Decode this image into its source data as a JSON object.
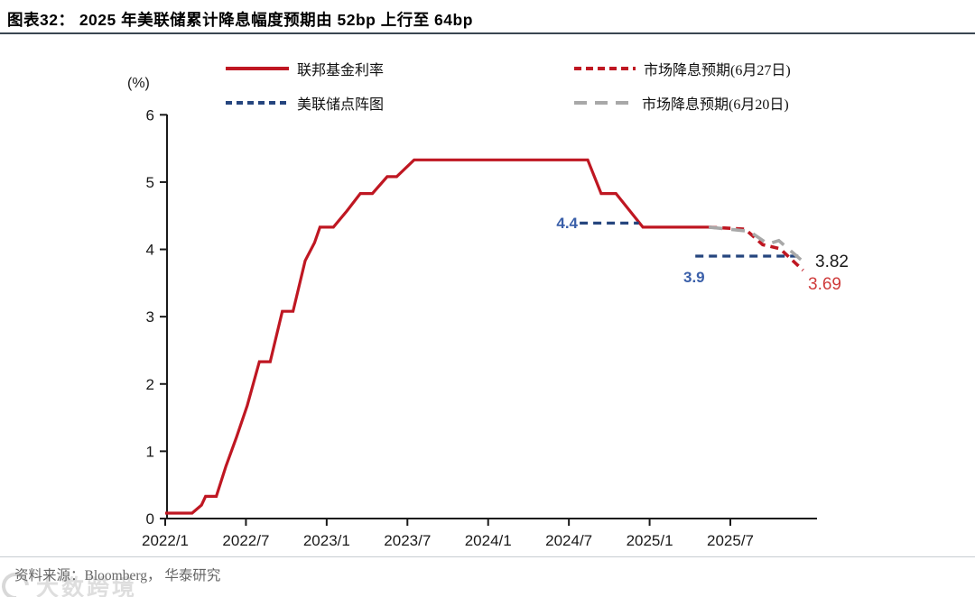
{
  "header": {
    "title": "图表32：  2025 年美联储累计降息幅度预期由 52bp 上行至 64bp"
  },
  "legend": {
    "items": [
      {
        "label": "联邦基金利率",
        "color": "#bf1722",
        "style": "solid"
      },
      {
        "label": "美联储点阵图",
        "color": "#25457e",
        "style": "short-dash"
      },
      {
        "label": "市场降息预期(6月27日)",
        "color": "#bf1722",
        "style": "short-dash"
      },
      {
        "label": "市场降息预期(6月20日)",
        "color": "#a8a8a8",
        "style": "long-dash"
      }
    ]
  },
  "chart_data": {
    "type": "line",
    "title": "2025 年美联储累计降息幅度预期由 52bp 上行至 64bp",
    "ylabel": "(%)",
    "ylim": [
      0,
      6
    ],
    "y_ticks": [
      0,
      1,
      2,
      3,
      4,
      5,
      6
    ],
    "grid": false,
    "legend_position": "top",
    "x_axis": {
      "unit": "months since 2022/1",
      "ticks": [
        {
          "m": 0,
          "label": "2022/1"
        },
        {
          "m": 6,
          "label": "2022/7"
        },
        {
          "m": 12,
          "label": "2023/1"
        },
        {
          "m": 18,
          "label": "2023/7"
        },
        {
          "m": 24,
          "label": "2024/1"
        },
        {
          "m": 30,
          "label": "2024/7"
        },
        {
          "m": 36,
          "label": "2025/1"
        },
        {
          "m": 42,
          "label": "2025/7"
        }
      ],
      "domain_months": [
        0,
        48.3
      ]
    },
    "series": [
      {
        "name": "联邦基金利率",
        "color": "#bf1722",
        "dash": "solid",
        "width": 3.2,
        "segments": [
          [
            [
              0,
              0.08
            ],
            [
              2,
              0.08
            ],
            [
              2.7,
              0.2
            ],
            [
              3,
              0.33
            ],
            [
              3.8,
              0.33
            ],
            [
              4.5,
              0.77
            ],
            [
              5.3,
              1.21
            ],
            [
              6.1,
              1.68
            ],
            [
              7,
              2.33
            ],
            [
              7.8,
              2.33
            ],
            [
              8.7,
              3.08
            ],
            [
              9.5,
              3.08
            ],
            [
              10.4,
              3.83
            ],
            [
              11.1,
              4.1
            ],
            [
              11.5,
              4.33
            ],
            [
              12.5,
              4.33
            ],
            [
              13.5,
              4.57
            ],
            [
              14.5,
              4.83
            ],
            [
              15.4,
              4.83
            ],
            [
              16.5,
              5.08
            ],
            [
              17.2,
              5.08
            ],
            [
              18.5,
              5.33
            ],
            [
              31.4,
              5.33
            ],
            [
              32.4,
              4.83
            ],
            [
              33.5,
              4.83
            ],
            [
              35.5,
              4.33
            ],
            [
              40.4,
              4.33
            ]
          ]
        ]
      },
      {
        "name": "美联储点阵图",
        "color": "#25457e",
        "dash": "short",
        "width": 3.2,
        "segments": [
          [
            [
              30.8,
              4.39
            ],
            [
              35.2,
              4.39
            ]
          ],
          [
            [
              39.4,
              3.9
            ],
            [
              47.4,
              3.9
            ]
          ]
        ]
      },
      {
        "name": "市场降息预期(6月27日)",
        "color": "#bf1722",
        "dash": "short",
        "width": 3.6,
        "segments": [
          [
            [
              40.4,
              4.33
            ],
            [
              43.1,
              4.3
            ],
            [
              44.4,
              4.07
            ],
            [
              45.7,
              4.01
            ],
            [
              47.4,
              3.69
            ]
          ]
        ]
      },
      {
        "name": "市场降息预期(6月20日)",
        "color": "#a8a8a8",
        "dash": "long",
        "width": 3.6,
        "segments": [
          [
            [
              40.4,
              4.33
            ],
            [
              43.4,
              4.27
            ],
            [
              44.8,
              4.08
            ],
            [
              45.6,
              4.13
            ],
            [
              47.4,
              3.82
            ]
          ]
        ]
      }
    ],
    "annotations": [
      {
        "text": "4.4",
        "series": "美联储点阵图",
        "color": "#3a5fa9"
      },
      {
        "text": "3.9",
        "series": "美联储点阵图",
        "color": "#3a5fa9"
      },
      {
        "text": "3.82",
        "series": "市场降息预期(6月20日)",
        "color": "#1a1a1a"
      },
      {
        "text": "3.69",
        "series": "市场降息预期(6月27日)",
        "color": "#cf3b3b"
      }
    ]
  },
  "footer": {
    "source": "资料来源：Bloomberg， 华泰研究"
  },
  "watermark": {
    "text": "大数跨境"
  }
}
